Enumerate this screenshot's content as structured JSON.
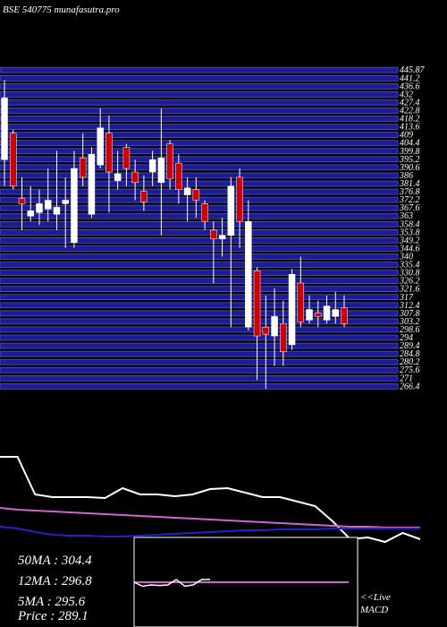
{
  "chart_data": {
    "type": "candlestick",
    "title": "BSE 540775 munafasutra.pro",
    "up_color": "#ffffff",
    "down_color": "#cc0000",
    "grid_color": "#1c1c99",
    "ylim": [
      262,
      450
    ],
    "yticks": [
      445.87,
      441.2,
      436.6,
      432,
      427.4,
      422.8,
      418.2,
      413.6,
      409,
      404.4,
      399.8,
      395.2,
      390.6,
      386,
      381.4,
      376.8,
      372.2,
      367.6,
      363,
      358.4,
      353.8,
      349.2,
      344.6,
      340,
      335.4,
      330.8,
      326.2,
      321.6,
      317,
      312.4,
      307.8,
      303.2,
      298.6,
      294,
      289.4,
      284.8,
      280.2,
      275.6,
      271,
      266.4
    ],
    "open": [
      395,
      410,
      373,
      363,
      365,
      367,
      364,
      370,
      348,
      396,
      364,
      392,
      410,
      383,
      402,
      388,
      377,
      388,
      382,
      404,
      393,
      375,
      378,
      370,
      355,
      350,
      352,
      385,
      300,
      332,
      300,
      295,
      302,
      290,
      325,
      304,
      308,
      304,
      306,
      311
    ],
    "close": [
      430,
      380,
      370,
      366,
      370,
      372,
      368,
      372,
      390,
      385,
      398,
      413,
      388,
      387,
      390,
      382,
      371,
      395,
      396,
      384,
      378,
      379,
      372,
      360,
      350,
      352,
      380,
      360,
      360,
      295,
      296,
      306,
      286,
      330,
      303,
      310,
      306,
      312,
      310,
      302
    ],
    "high": [
      440,
      412,
      385,
      380,
      378,
      390,
      400,
      385,
      400,
      410,
      402,
      424,
      420,
      400,
      404,
      395,
      386,
      400,
      424,
      406,
      398,
      385,
      385,
      372,
      360,
      362,
      385,
      390,
      372,
      334,
      318,
      322,
      315,
      333,
      340,
      318,
      315,
      318,
      320,
      318
    ],
    "low": [
      380,
      378,
      355,
      360,
      358,
      360,
      355,
      345,
      345,
      380,
      362,
      390,
      365,
      378,
      380,
      372,
      366,
      380,
      352,
      378,
      370,
      360,
      362,
      355,
      325,
      340,
      300,
      345,
      298,
      270,
      265,
      278,
      278,
      287,
      300,
      302,
      300,
      302,
      302,
      300
    ],
    "indicator": {
      "ylim": [
        -10,
        100
      ],
      "series": [
        {
          "color": "#ffffff",
          "values": [
            90,
            90,
            48,
            45,
            45,
            45,
            44,
            55,
            48,
            48,
            46,
            48,
            54,
            55,
            50,
            45,
            45,
            40,
            35,
            18,
            -2,
            0,
            -5,
            5,
            -2
          ]
        },
        {
          "color": "#cc66cc",
          "values": [
            33,
            31,
            30,
            29,
            28,
            27,
            26,
            25,
            24,
            23,
            22,
            21,
            20,
            19,
            18,
            17,
            16,
            15,
            14,
            13,
            12,
            12,
            11,
            11,
            11
          ]
        },
        {
          "color": "#2222cc",
          "values": [
            12,
            10,
            6,
            3,
            2,
            2,
            1,
            1,
            2,
            3,
            4,
            5,
            6,
            7,
            8,
            8,
            9,
            9,
            9,
            10,
            10,
            10,
            10,
            10,
            10
          ]
        }
      ]
    },
    "macd": {
      "ylim": [
        -1,
        1
      ],
      "line": [
        0,
        -0.15,
        -0.1,
        -0.12,
        -0.1,
        0.1,
        -0.15,
        -0.1,
        0.1,
        0.1
      ],
      "signal": [
        0,
        0
      ]
    },
    "ma_texts": [
      "50MA : 304.4",
      "12MA : 296.8",
      "5MA : 295.6",
      "Price   : 289.1"
    ],
    "live_text": "<<Live",
    "macd_text": "MACD"
  }
}
